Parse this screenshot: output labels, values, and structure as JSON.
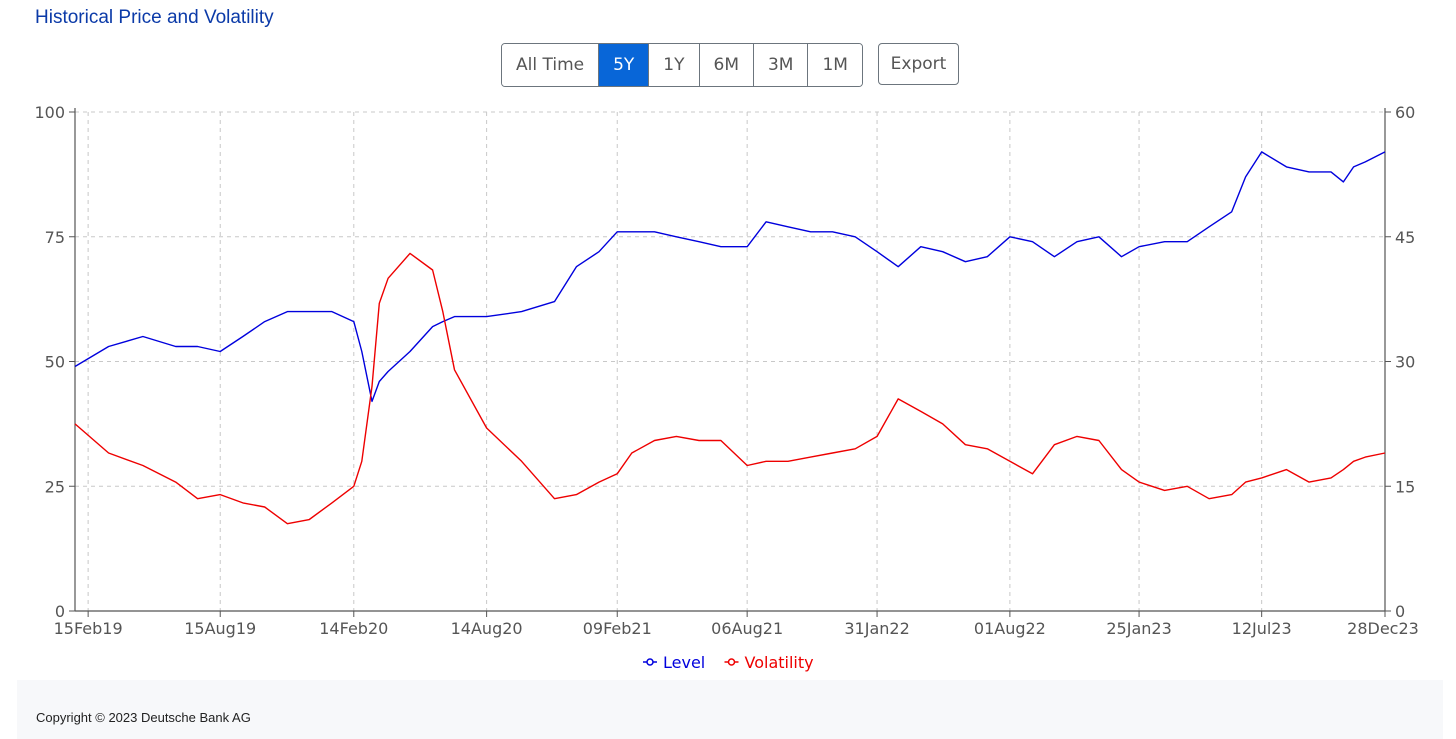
{
  "title": "Historical Price and Volatility",
  "range_buttons": [
    {
      "label": "All Time",
      "active": false
    },
    {
      "label": "5Y",
      "active": true
    },
    {
      "label": "1Y",
      "active": false
    },
    {
      "label": "6M",
      "active": false
    },
    {
      "label": "3M",
      "active": false
    },
    {
      "label": "1M",
      "active": false
    }
  ],
  "export_label": "Export",
  "copyright": "Copyright © 2023 Deutsche Bank AG",
  "colors": {
    "level": "#0000dd",
    "volatility": "#ee0000",
    "grid": "#c8c8c8",
    "axis": "#555555",
    "accent": "#0866d8"
  },
  "chart_data": {
    "type": "line",
    "x_dates": [
      "2019-01-28",
      "2019-03-15",
      "2019-05-01",
      "2019-06-15",
      "2019-07-15",
      "2019-08-15",
      "2019-09-15",
      "2019-10-15",
      "2019-11-15",
      "2019-12-15",
      "2020-01-15",
      "2020-02-14",
      "2020-02-25",
      "2020-03-10",
      "2020-03-20",
      "2020-04-01",
      "2020-05-01",
      "2020-06-01",
      "2020-06-15",
      "2020-07-01",
      "2020-08-14",
      "2020-10-01",
      "2020-11-15",
      "2020-12-15",
      "2021-01-15",
      "2021-02-09",
      "2021-03-01",
      "2021-04-01",
      "2021-05-01",
      "2021-06-01",
      "2021-07-01",
      "2021-08-06",
      "2021-09-01",
      "2021-10-01",
      "2021-11-01",
      "2021-12-01",
      "2022-01-01",
      "2022-01-31",
      "2022-03-01",
      "2022-04-01",
      "2022-05-01",
      "2022-06-01",
      "2022-07-01",
      "2022-08-01",
      "2022-09-01",
      "2022-10-01",
      "2022-11-01",
      "2022-12-01",
      "2023-01-01",
      "2023-01-25",
      "2023-03-01",
      "2023-04-01",
      "2023-05-01",
      "2023-06-01",
      "2023-06-20",
      "2023-07-12",
      "2023-08-15",
      "2023-09-15",
      "2023-10-15",
      "2023-11-01",
      "2023-11-15",
      "2023-12-01",
      "2023-12-28"
    ],
    "series": [
      {
        "name": "Level",
        "axis": "left",
        "values": [
          49,
          53,
          55,
          53,
          53,
          52,
          55,
          58,
          60,
          60,
          60,
          58,
          52,
          42,
          46,
          48,
          52,
          57,
          58,
          59,
          59,
          60,
          62,
          69,
          72,
          76,
          76,
          76,
          75,
          74,
          73,
          73,
          78,
          77,
          76,
          76,
          75,
          72,
          69,
          73,
          72,
          70,
          71,
          75,
          74,
          71,
          74,
          75,
          71,
          73,
          74,
          74,
          77,
          80,
          87,
          92,
          89,
          88,
          88,
          86,
          89,
          90,
          92
        ]
      },
      {
        "name": "Volatility",
        "axis": "right",
        "values": [
          22.5,
          19.0,
          17.5,
          15.5,
          13.5,
          14.0,
          13.0,
          12.5,
          10.5,
          11.0,
          13.0,
          15.0,
          18.0,
          27.0,
          37.0,
          40.0,
          43.0,
          41.0,
          36.0,
          29.0,
          22.0,
          18.0,
          13.5,
          14.0,
          15.5,
          16.5,
          19.0,
          20.5,
          21.0,
          20.5,
          20.5,
          17.5,
          18.0,
          18.0,
          18.5,
          19.0,
          19.5,
          21.0,
          25.5,
          24.0,
          22.5,
          20.0,
          19.5,
          18.0,
          16.5,
          20.0,
          21.0,
          20.5,
          17.0,
          15.5,
          14.5,
          15.0,
          13.5,
          14.0,
          15.5,
          16.0,
          17.0,
          15.5,
          16.0,
          17.0,
          18.0,
          18.5,
          19.0
        ]
      }
    ],
    "y_left": {
      "min": 0,
      "max": 100,
      "ticks": [
        "0",
        "25",
        "50",
        "75",
        "100"
      ]
    },
    "y_right": {
      "min": 0,
      "max": 60,
      "ticks": [
        "0",
        "15",
        "30",
        "45",
        "60"
      ]
    },
    "x_ticks": [
      {
        "date": "2019-02-15",
        "label": "15Feb19"
      },
      {
        "date": "2019-08-15",
        "label": "15Aug19"
      },
      {
        "date": "2020-02-14",
        "label": "14Feb20"
      },
      {
        "date": "2020-08-14",
        "label": "14Aug20"
      },
      {
        "date": "2021-02-09",
        "label": "09Feb21"
      },
      {
        "date": "2021-08-06",
        "label": "06Aug21"
      },
      {
        "date": "2022-01-31",
        "label": "31Jan22"
      },
      {
        "date": "2022-08-01",
        "label": "01Aug22"
      },
      {
        "date": "2023-01-25",
        "label": "25Jan23"
      },
      {
        "date": "2023-07-12",
        "label": "12Jul23"
      },
      {
        "date": "2023-12-28",
        "label": "28Dec23"
      }
    ],
    "x_range": [
      "2019-01-28",
      "2023-12-28"
    ],
    "grid": true,
    "legend_position": "bottom-center"
  }
}
